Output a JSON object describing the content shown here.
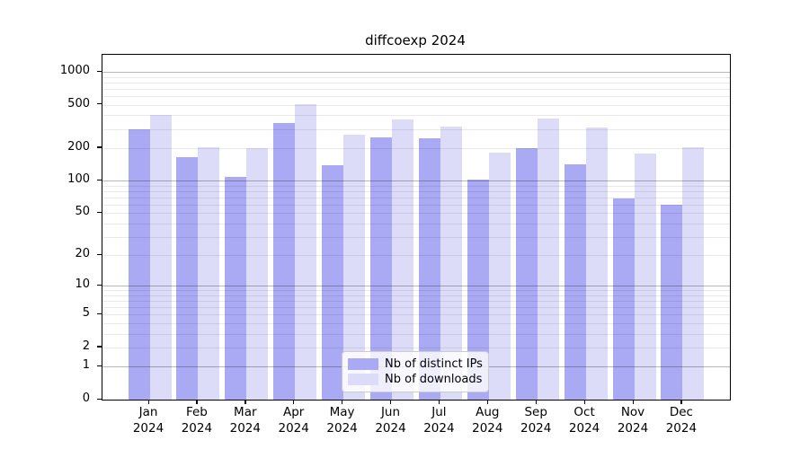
{
  "title": "diffcoexp 2024",
  "chart_data": {
    "type": "bar",
    "title": "diffcoexp 2024",
    "categories": [
      "Jan",
      "Feb",
      "Mar",
      "Apr",
      "May",
      "Jun",
      "Jul",
      "Aug",
      "Sep",
      "Oct",
      "Nov",
      "Dec"
    ],
    "year": "2024",
    "series": [
      {
        "name": "Nb of distinct IPs",
        "color": "#a9a9f4",
        "values": [
          296,
          165,
          108,
          338,
          140,
          252,
          248,
          102,
          198,
          142,
          69,
          60
        ]
      },
      {
        "name": "Nb of downloads",
        "color": "#dcdcf9",
        "values": [
          406,
          205,
          201,
          505,
          265,
          370,
          318,
          180,
          372,
          307,
          177,
          205
        ]
      }
    ],
    "yscale": "log10(value+1)",
    "yticks": [
      0,
      1,
      2,
      5,
      10,
      20,
      50,
      100,
      200,
      500,
      1000
    ],
    "ylim": [
      0,
      1430
    ],
    "grid": "horizontal log major+minor, drawn over bars",
    "legend_position": "inside plot, lower center",
    "colors": {
      "grid_major": "#b8b8b8",
      "grid_minor": "#e8e8e8",
      "axis": "#000000",
      "background": "#ffffff"
    }
  },
  "legend": {
    "items": [
      {
        "label": "Nb of distinct IPs",
        "color": "#a9a9f4"
      },
      {
        "label": "Nb of downloads",
        "color": "#dcdcf9"
      }
    ]
  }
}
